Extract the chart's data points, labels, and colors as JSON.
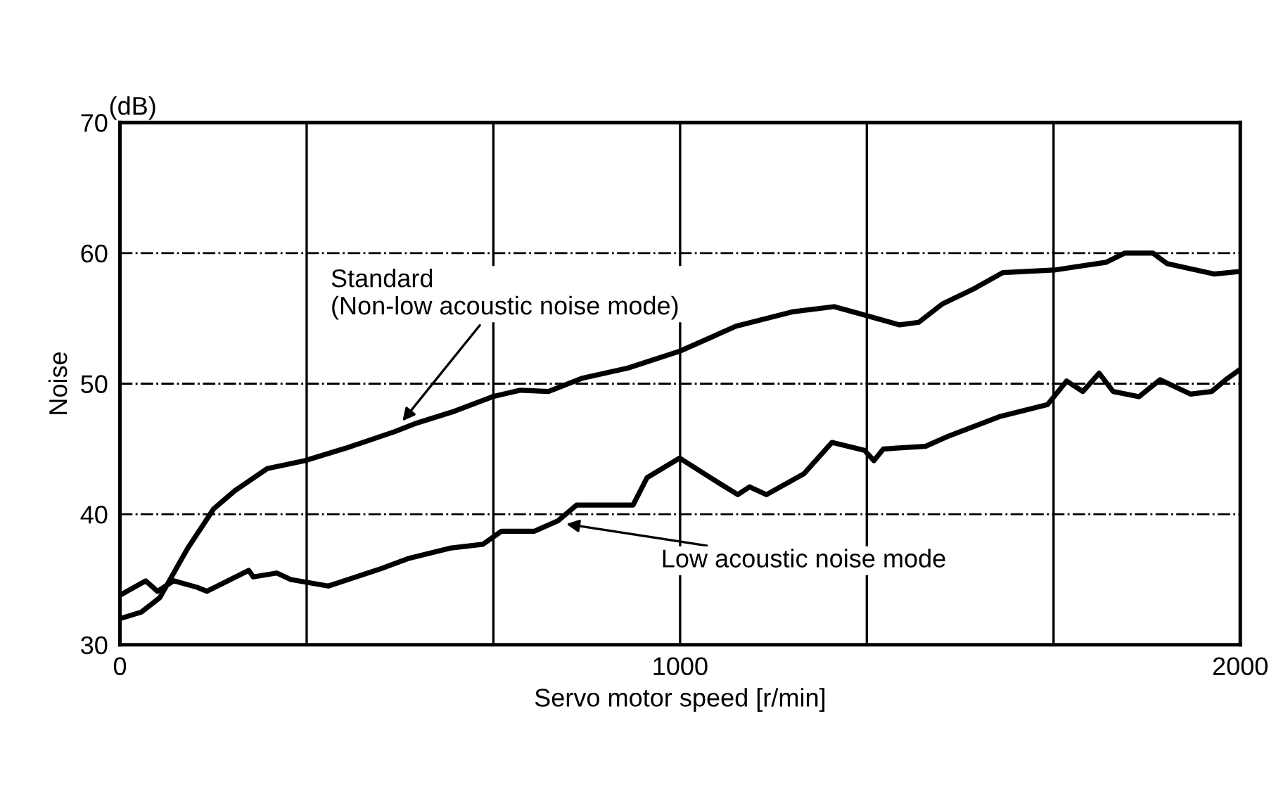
{
  "chart_data": {
    "type": "line",
    "xlabel": "Servo motor speed [r/min]",
    "ylabel": "Noise",
    "xlim": [
      0,
      2000
    ],
    "ylim": [
      30,
      70
    ],
    "xticks": [
      0,
      {
        "value": 333.33,
        "label": null
      },
      {
        "value": 666.67,
        "label": null
      },
      1000,
      {
        "value": 1333.33,
        "label": null
      },
      {
        "value": 1666.67,
        "label": null
      },
      2000
    ],
    "yticks": [
      30,
      40,
      50,
      60,
      70
    ],
    "grid": true,
    "legend": false,
    "line_style": "solid",
    "marker": "none",
    "series": [
      {
        "color": "#000000",
        "x": [
          0,
          38,
          71,
          96,
          121,
          155,
          167,
          205,
          263,
          330,
          406,
          489,
          531,
          598,
          665,
          715,
          765,
          824,
          907,
          1000,
          1100,
          1200,
          1275,
          1325,
          1392,
          1426,
          1468,
          1526,
          1576,
          1668,
          1761,
          1794,
          1844,
          1869,
          1953,
          2000
        ],
        "values": [
          32.0,
          32.5,
          33.6,
          35.5,
          37.4,
          39.6,
          40.4,
          41.8,
          43.5,
          44.1,
          45.1,
          46.3,
          47.0,
          47.9,
          49.0,
          49.5,
          49.4,
          50.4,
          51.2,
          52.5,
          54.4,
          55.5,
          55.9,
          55.3,
          54.5,
          54.7,
          56.1,
          57.3,
          58.5,
          58.7,
          59.3,
          60.0,
          60.0,
          59.2,
          58.4,
          58.6
        ]
      },
      {
        "color": "#000000",
        "x": [
          0,
          46,
          67,
          96,
          138,
          155,
          230,
          238,
          280,
          305,
          372,
          464,
          514,
          589,
          648,
          681,
          740,
          782,
          815,
          916,
          941,
          999,
          1069,
          1103,
          1124,
          1154,
          1221,
          1271,
          1329,
          1346,
          1363,
          1438,
          1480,
          1572,
          1656,
          1690,
          1719,
          1748,
          1773,
          1819,
          1857,
          1911,
          1949,
          1974,
          2000
        ],
        "values": [
          33.8,
          34.9,
          34.1,
          34.9,
          34.4,
          34.1,
          35.7,
          35.2,
          35.5,
          35.0,
          34.5,
          35.8,
          36.6,
          37.4,
          37.7,
          38.7,
          38.7,
          39.5,
          40.7,
          40.7,
          42.8,
          44.3,
          42.4,
          41.5,
          42.1,
          41.5,
          43.1,
          45.5,
          44.9,
          44.1,
          45.0,
          45.2,
          46.0,
          47.5,
          48.4,
          50.2,
          49.4,
          50.8,
          49.4,
          49.0,
          50.3,
          49.2,
          49.4,
          50.3,
          51.1
        ]
      }
    ],
    "annotations": [
      "(dB)",
      {
        "text": "Standard\n(Non-low acoustic noise mode)",
        "x": 500,
        "y": 46.9
      },
      {
        "text": "Low acoustic noise mode",
        "x": 790,
        "y": 39.3
      }
    ]
  }
}
